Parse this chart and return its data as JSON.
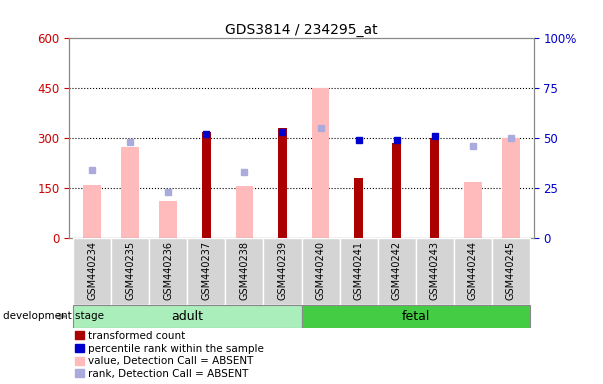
{
  "title": "GDS3814 / 234295_at",
  "categories": [
    "GSM440234",
    "GSM440235",
    "GSM440236",
    "GSM440237",
    "GSM440238",
    "GSM440239",
    "GSM440240",
    "GSM440241",
    "GSM440242",
    "GSM440243",
    "GSM440244",
    "GSM440245"
  ],
  "red_bars": [
    0,
    0,
    0,
    320,
    0,
    330,
    0,
    180,
    285,
    300,
    0,
    0
  ],
  "blue_squares": [
    0,
    0,
    0,
    52,
    0,
    53,
    0,
    49,
    49,
    51,
    0,
    0
  ],
  "pink_bars": [
    160,
    275,
    110,
    0,
    155,
    0,
    450,
    0,
    0,
    0,
    170,
    302
  ],
  "lavender_squares": [
    34,
    48,
    23,
    0,
    33,
    0,
    55,
    0,
    0,
    0,
    46,
    50
  ],
  "adult_count": 6,
  "fetal_count": 6,
  "left_ylim": [
    0,
    600
  ],
  "right_ylim": [
    0,
    100
  ],
  "left_yticks": [
    0,
    150,
    300,
    450,
    600
  ],
  "right_yticks": [
    0,
    25,
    50,
    75,
    100
  ],
  "left_yticklabels": [
    "0",
    "150",
    "300",
    "450",
    "600"
  ],
  "right_yticklabels": [
    "0",
    "25",
    "50",
    "75",
    "100%"
  ],
  "right_top_label": "100%",
  "left_tick_color": "#cc0000",
  "right_tick_color": "#0000cc",
  "red_bar_color": "#aa0000",
  "blue_sq_color": "#0000cc",
  "pink_bar_color": "#ffbbbb",
  "lavender_sq_color": "#aaaadd",
  "adult_color": "#aaeebb",
  "fetal_color": "#44cc44",
  "xlabel_area_adult": "adult",
  "xlabel_area_fetal": "fetal",
  "dev_stage_label": "development stage",
  "legend_items": [
    "transformed count",
    "percentile rank within the sample",
    "value, Detection Call = ABSENT",
    "rank, Detection Call = ABSENT"
  ],
  "legend_colors": [
    "#aa0000",
    "#0000cc",
    "#ffbbbb",
    "#aaaadd"
  ],
  "bg_color": "#ffffff",
  "grid_color": "#000000",
  "grid_yticks": [
    150,
    300,
    450
  ]
}
